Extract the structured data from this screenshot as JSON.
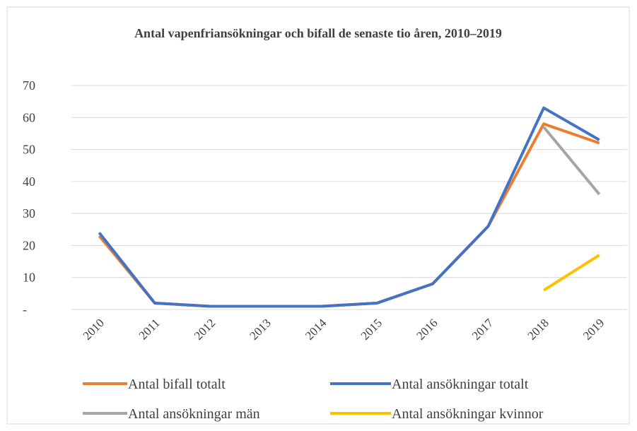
{
  "chart_data": {
    "type": "line",
    "title": "Antal vapenfriansökningar och bifall de senaste tio åren,  2010–2019",
    "categories": [
      "2010",
      "2011",
      "2012",
      "2013",
      "2014",
      "2015",
      "2016",
      "2017",
      "2018",
      "2019"
    ],
    "series": [
      {
        "name": "Antal bifall totalt",
        "color": "#ED7D31",
        "values": [
          23,
          2,
          1,
          1,
          1,
          2,
          8,
          26,
          58,
          52
        ]
      },
      {
        "name": "Antal ansökningar totalt",
        "color": "#4472C4",
        "values": [
          24,
          2,
          1,
          1,
          1,
          2,
          8,
          26,
          63,
          53
        ]
      },
      {
        "name": "Antal ansökningar män",
        "color": "#A5A5A5",
        "values": [
          null,
          null,
          null,
          null,
          null,
          null,
          null,
          null,
          57,
          36
        ]
      },
      {
        "name": "Antal ansökningar kvinnor",
        "color": "#FFC000",
        "values": [
          null,
          null,
          null,
          null,
          null,
          null,
          null,
          null,
          6,
          17
        ]
      }
    ],
    "ylim": [
      0,
      70
    ],
    "yticks": [
      {
        "value": 0,
        "label": "-"
      },
      10,
      20,
      30,
      40,
      50,
      60,
      70
    ],
    "grid": true
  }
}
